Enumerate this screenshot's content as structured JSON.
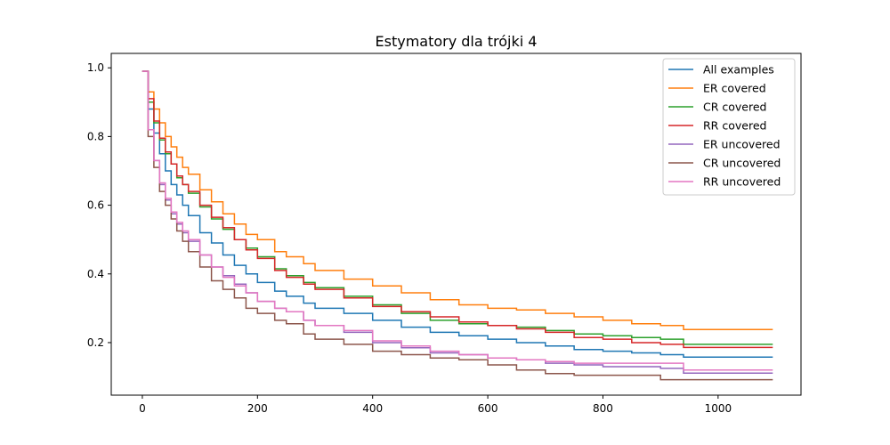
{
  "chart_data": {
    "type": "line",
    "title": "Estymatory dla trójki 4",
    "xlabel": "",
    "ylabel": "",
    "xlim": [
      -54,
      1144
    ],
    "ylim": [
      0.047,
      1.042
    ],
    "x_ticks": [
      0,
      200,
      400,
      600,
      800,
      1000
    ],
    "y_ticks": [
      0.2,
      0.4,
      0.6,
      0.8,
      1.0
    ],
    "x_tick_labels": [
      "0",
      "200",
      "400",
      "600",
      "800",
      "1000"
    ],
    "y_tick_labels": [
      "0.2",
      "0.4",
      "0.6",
      "0.8",
      "1.0"
    ],
    "grid": false,
    "legend_position": "top-right",
    "line_style": "step",
    "series": [
      {
        "name": "All examples",
        "color": "#1f77b4",
        "x": [
          0,
          10,
          20,
          30,
          40,
          50,
          60,
          70,
          80,
          100,
          120,
          140,
          160,
          180,
          200,
          230,
          250,
          280,
          300,
          350,
          400,
          450,
          500,
          550,
          600,
          650,
          700,
          750,
          800,
          850,
          900,
          940,
          1000,
          1095
        ],
        "y": [
          0.99,
          0.88,
          0.81,
          0.75,
          0.7,
          0.66,
          0.63,
          0.6,
          0.57,
          0.52,
          0.49,
          0.455,
          0.425,
          0.4,
          0.375,
          0.35,
          0.335,
          0.315,
          0.3,
          0.285,
          0.265,
          0.245,
          0.23,
          0.22,
          0.21,
          0.2,
          0.19,
          0.18,
          0.175,
          0.17,
          0.165,
          0.158,
          0.158,
          0.158
        ]
      },
      {
        "name": "ER covered",
        "color": "#ff7f0e",
        "x": [
          0,
          10,
          20,
          30,
          40,
          50,
          60,
          70,
          80,
          100,
          120,
          140,
          160,
          180,
          200,
          230,
          250,
          280,
          300,
          350,
          400,
          450,
          500,
          550,
          600,
          650,
          700,
          750,
          800,
          850,
          900,
          940,
          1000,
          1095
        ],
        "y": [
          0.99,
          0.93,
          0.88,
          0.84,
          0.8,
          0.77,
          0.74,
          0.71,
          0.69,
          0.645,
          0.61,
          0.575,
          0.545,
          0.515,
          0.5,
          0.465,
          0.45,
          0.43,
          0.41,
          0.385,
          0.365,
          0.345,
          0.325,
          0.31,
          0.3,
          0.295,
          0.285,
          0.275,
          0.265,
          0.255,
          0.25,
          0.238,
          0.238,
          0.238
        ]
      },
      {
        "name": "CR covered",
        "color": "#2ca02c",
        "x": [
          0,
          10,
          20,
          30,
          40,
          50,
          60,
          70,
          80,
          100,
          120,
          140,
          160,
          180,
          200,
          230,
          250,
          280,
          300,
          350,
          400,
          450,
          500,
          550,
          600,
          650,
          700,
          750,
          800,
          850,
          900,
          940,
          1000,
          1095
        ],
        "y": [
          0.99,
          0.9,
          0.84,
          0.79,
          0.75,
          0.72,
          0.68,
          0.66,
          0.635,
          0.595,
          0.56,
          0.53,
          0.5,
          0.475,
          0.45,
          0.415,
          0.395,
          0.375,
          0.36,
          0.335,
          0.31,
          0.285,
          0.265,
          0.255,
          0.25,
          0.245,
          0.235,
          0.225,
          0.22,
          0.215,
          0.21,
          0.195,
          0.195,
          0.195
        ]
      },
      {
        "name": "RR covered",
        "color": "#d62728",
        "x": [
          0,
          10,
          20,
          30,
          40,
          50,
          60,
          70,
          80,
          100,
          120,
          140,
          160,
          180,
          200,
          230,
          250,
          280,
          300,
          350,
          400,
          450,
          500,
          550,
          600,
          650,
          700,
          750,
          800,
          850,
          900,
          940,
          1000,
          1095
        ],
        "y": [
          0.99,
          0.91,
          0.845,
          0.795,
          0.755,
          0.72,
          0.685,
          0.66,
          0.64,
          0.6,
          0.565,
          0.535,
          0.5,
          0.47,
          0.445,
          0.41,
          0.39,
          0.37,
          0.355,
          0.33,
          0.305,
          0.29,
          0.275,
          0.26,
          0.25,
          0.24,
          0.23,
          0.215,
          0.21,
          0.2,
          0.195,
          0.186,
          0.186,
          0.186
        ]
      },
      {
        "name": "ER uncovered",
        "color": "#9467bd",
        "x": [
          0,
          10,
          20,
          30,
          40,
          50,
          60,
          70,
          80,
          100,
          120,
          140,
          160,
          180,
          200,
          230,
          250,
          280,
          300,
          350,
          400,
          450,
          500,
          550,
          600,
          650,
          700,
          750,
          800,
          850,
          900,
          940,
          1000,
          1095
        ],
        "y": [
          0.99,
          0.82,
          0.73,
          0.66,
          0.615,
          0.575,
          0.545,
          0.52,
          0.495,
          0.455,
          0.42,
          0.395,
          0.37,
          0.345,
          0.32,
          0.3,
          0.29,
          0.265,
          0.25,
          0.23,
          0.2,
          0.185,
          0.17,
          0.165,
          0.155,
          0.15,
          0.14,
          0.135,
          0.13,
          0.13,
          0.125,
          0.111,
          0.111,
          0.111
        ]
      },
      {
        "name": "CR uncovered",
        "color": "#8c564b",
        "x": [
          0,
          10,
          20,
          30,
          40,
          50,
          60,
          70,
          80,
          100,
          120,
          140,
          160,
          180,
          200,
          230,
          250,
          280,
          300,
          350,
          400,
          450,
          500,
          550,
          600,
          650,
          700,
          750,
          800,
          850,
          900,
          940,
          1000,
          1095
        ],
        "y": [
          0.99,
          0.8,
          0.71,
          0.64,
          0.6,
          0.56,
          0.525,
          0.495,
          0.465,
          0.42,
          0.38,
          0.355,
          0.33,
          0.3,
          0.285,
          0.265,
          0.255,
          0.225,
          0.21,
          0.195,
          0.175,
          0.165,
          0.155,
          0.15,
          0.135,
          0.12,
          0.11,
          0.105,
          0.105,
          0.105,
          0.092,
          0.092,
          0.092,
          0.092
        ]
      },
      {
        "name": "RR uncovered",
        "color": "#e377c2",
        "x": [
          0,
          10,
          20,
          30,
          40,
          50,
          60,
          70,
          80,
          100,
          120,
          140,
          160,
          180,
          200,
          230,
          250,
          280,
          300,
          350,
          400,
          450,
          500,
          550,
          600,
          650,
          700,
          750,
          800,
          850,
          900,
          940,
          1000,
          1095
        ],
        "y": [
          0.99,
          0.82,
          0.73,
          0.665,
          0.62,
          0.58,
          0.55,
          0.525,
          0.5,
          0.455,
          0.42,
          0.39,
          0.365,
          0.345,
          0.32,
          0.3,
          0.29,
          0.265,
          0.25,
          0.235,
          0.205,
          0.19,
          0.175,
          0.165,
          0.155,
          0.15,
          0.145,
          0.14,
          0.14,
          0.14,
          0.14,
          0.12,
          0.12,
          0.12
        ]
      }
    ]
  }
}
